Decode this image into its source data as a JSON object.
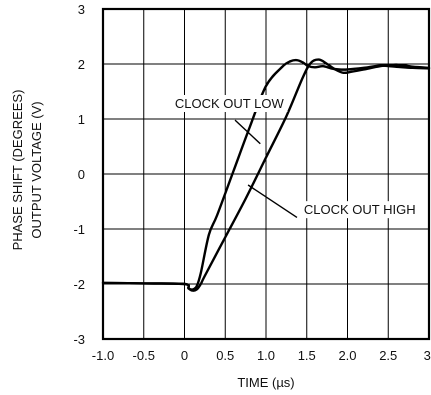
{
  "chart_data": {
    "type": "line",
    "title": "",
    "xlabel": "TIME (µs)",
    "ylabel_lines": [
      "PHASE SHIFT (DEGREES)",
      "OUTPUT VOLTAGE (V)"
    ],
    "xlim": [
      -1.0,
      3.0
    ],
    "ylim": [
      -3,
      3
    ],
    "grid": true,
    "x_ticks": [
      -1.0,
      -0.5,
      0,
      0.5,
      1.0,
      1.5,
      2.0,
      2.5,
      3.0
    ],
    "x_tick_labels": [
      "-1.0",
      "-0.5",
      "0",
      "0.5",
      "1.0",
      "1.5",
      "2.0",
      "2.5",
      "3."
    ],
    "y_ticks": [
      -3,
      -2,
      -1,
      0,
      1,
      2,
      3
    ],
    "y_tick_labels": [
      "-3",
      "-2",
      "-1",
      "0",
      "1",
      "2",
      "3"
    ],
    "series": [
      {
        "name": "CLOCK OUT LOW",
        "x": [
          -1.0,
          -0.5,
          0.0,
          0.05,
          0.1,
          0.15,
          0.2,
          0.3,
          0.4,
          0.6,
          0.8,
          1.0,
          1.2,
          1.3,
          1.38,
          1.45,
          1.52,
          1.6,
          1.7,
          1.8,
          1.9,
          2.0,
          2.2,
          2.4,
          2.6,
          2.8,
          3.0
        ],
        "y": [
          -1.98,
          -1.99,
          -2.0,
          -2.08,
          -2.1,
          -2.04,
          -1.8,
          -1.1,
          -0.75,
          0.05,
          0.85,
          1.6,
          1.95,
          2.05,
          2.07,
          2.03,
          1.96,
          1.94,
          1.96,
          1.92,
          1.9,
          1.9,
          1.93,
          1.97,
          1.95,
          1.93,
          1.92
        ]
      },
      {
        "name": "CLOCK OUT HIGH",
        "x": [
          -1.0,
          -0.5,
          0.0,
          0.05,
          0.1,
          0.15,
          0.2,
          0.25,
          0.5,
          0.75,
          1.0,
          1.25,
          1.45,
          1.55,
          1.65,
          1.75,
          1.85,
          1.95,
          2.05,
          2.2,
          2.4,
          2.6,
          2.8,
          3.0
        ],
        "y": [
          -1.98,
          -1.99,
          -2.0,
          -2.08,
          -2.12,
          -2.1,
          -2.0,
          -1.85,
          -1.15,
          -0.45,
          0.3,
          1.05,
          1.75,
          2.02,
          2.08,
          2.0,
          1.9,
          1.84,
          1.86,
          1.9,
          1.96,
          1.99,
          1.95,
          1.93
        ]
      }
    ],
    "annotations": [
      {
        "text": "CLOCK OUT LOW",
        "series": "CLOCK OUT LOW"
      },
      {
        "text": "CLOCK OUT HIGH",
        "series": "CLOCK OUT HIGH"
      }
    ]
  }
}
